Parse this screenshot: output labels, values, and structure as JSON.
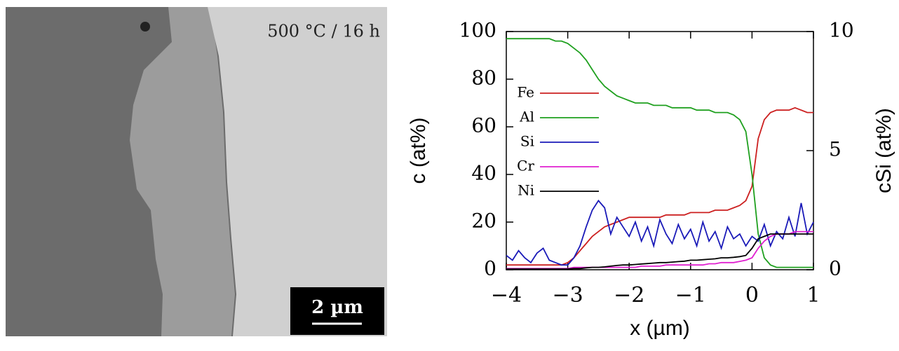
{
  "image": {
    "label": "500 °C / 16 h",
    "scale_bar": "2 µm"
  },
  "chart_data": {
    "type": "line",
    "x_label": "x (µm)",
    "y_label": "c (at%)",
    "y2_label": "cSi (at%)",
    "x": [
      -4.0,
      -3.9,
      -3.8,
      -3.7,
      -3.6,
      -3.5,
      -3.4,
      -3.3,
      -3.2,
      -3.1,
      -3.0,
      -2.9,
      -2.8,
      -2.7,
      -2.6,
      -2.5,
      -2.4,
      -2.3,
      -2.2,
      -2.1,
      -2.0,
      -1.9,
      -1.8,
      -1.7,
      -1.6,
      -1.5,
      -1.4,
      -1.3,
      -1.2,
      -1.1,
      -1.0,
      -0.9,
      -0.8,
      -0.7,
      -0.6,
      -0.5,
      -0.4,
      -0.3,
      -0.2,
      -0.1,
      0.0,
      0.1,
      0.2,
      0.3,
      0.4,
      0.5,
      0.6,
      0.7,
      0.8,
      0.9,
      1.0
    ],
    "series": [
      {
        "name": "Fe",
        "color": "#cc2020",
        "values": [
          2,
          2,
          2,
          2,
          2,
          2,
          2,
          2,
          2,
          2,
          3,
          5,
          8,
          11,
          14,
          16,
          18,
          19,
          20,
          21,
          22,
          22,
          22,
          22,
          22,
          22,
          23,
          23,
          23,
          23,
          24,
          24,
          24,
          24,
          25,
          25,
          25,
          26,
          27,
          29,
          35,
          55,
          63,
          66,
          67,
          67,
          67,
          68,
          67,
          66,
          66
        ]
      },
      {
        "name": "Al",
        "color": "#1fa01f",
        "values": [
          97,
          97,
          97,
          97,
          97,
          97,
          97,
          97,
          96,
          96,
          95,
          93,
          91,
          88,
          84,
          80,
          77,
          75,
          73,
          72,
          71,
          70,
          70,
          70,
          69,
          69,
          69,
          68,
          68,
          68,
          68,
          67,
          67,
          67,
          66,
          66,
          66,
          65,
          63,
          58,
          40,
          15,
          5,
          2,
          1,
          1,
          1,
          1,
          1,
          1,
          1
        ]
      },
      {
        "name": "Si",
        "color": "#1a1ab8",
        "axis": "y2",
        "values": [
          0.6,
          0.4,
          0.8,
          0.5,
          0.3,
          0.7,
          0.9,
          0.4,
          0.3,
          0.2,
          0.2,
          0.5,
          1.0,
          1.8,
          2.5,
          2.9,
          2.6,
          1.5,
          2.2,
          1.8,
          1.4,
          2.0,
          1.2,
          1.8,
          1.0,
          2.1,
          1.5,
          1.1,
          1.9,
          1.3,
          1.7,
          1.0,
          2.0,
          1.2,
          1.6,
          0.9,
          1.8,
          1.3,
          1.5,
          1.0,
          1.4,
          1.2,
          1.9,
          1.0,
          1.6,
          1.3,
          2.2,
          1.4,
          2.8,
          1.5,
          2.0
        ]
      },
      {
        "name": "Cr",
        "color": "#e020d0",
        "values": [
          0.5,
          0.5,
          0.5,
          0.5,
          0.5,
          0.5,
          0.5,
          0.5,
          0.5,
          0.5,
          0.5,
          1,
          1,
          1,
          1,
          1,
          1,
          1,
          1,
          1,
          1,
          1,
          1.5,
          1.5,
          1.5,
          1.5,
          2,
          2,
          2,
          2,
          2,
          2,
          2,
          2.5,
          2.5,
          3,
          3,
          3,
          3.5,
          4,
          5,
          9,
          12,
          14,
          15,
          15,
          15,
          16,
          16,
          16,
          16
        ]
      },
      {
        "name": "Ni",
        "color": "#000000",
        "values": [
          0.3,
          0.3,
          0.3,
          0.3,
          0.3,
          0.3,
          0.3,
          0.3,
          0.3,
          0.3,
          0.3,
          0.5,
          0.5,
          0.8,
          1,
          1,
          1.2,
          1.5,
          1.8,
          2,
          2,
          2.2,
          2.4,
          2.6,
          2.8,
          3,
          3,
          3.2,
          3.4,
          3.6,
          4,
          4,
          4.2,
          4.4,
          4.6,
          5,
          5,
          5.2,
          5.5,
          6,
          9,
          13,
          14,
          15,
          15,
          15,
          15,
          15,
          15,
          15,
          15
        ]
      }
    ],
    "xlim": [
      -4,
      1
    ],
    "xticks": [
      {
        "value": -4,
        "label": "−4"
      },
      {
        "value": -3,
        "label": "−3"
      },
      {
        "value": -2,
        "label": "−2"
      },
      {
        "value": -1,
        "label": "−1"
      },
      0,
      1
    ],
    "ylim": [
      0,
      100
    ],
    "yticks": [
      0,
      20,
      40,
      60,
      80,
      100
    ],
    "y2lim": [
      0,
      10
    ],
    "y2ticks": [
      0,
      5,
      10
    ],
    "legend": "upper-left"
  }
}
